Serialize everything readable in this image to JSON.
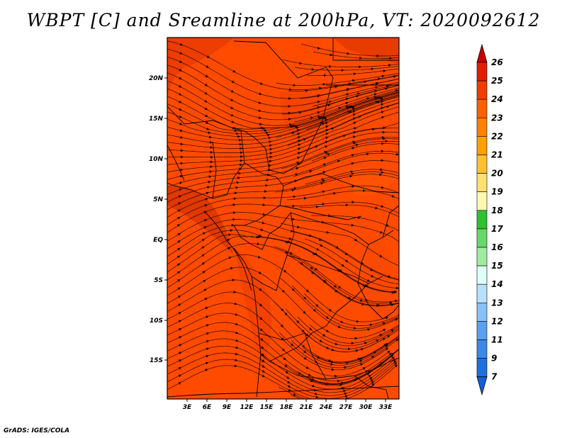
{
  "title": "WBPT [C] and Sreamline at 200hPa, VT: 2020092612",
  "footer": "GrADS: IGES/COLA",
  "map": {
    "fill_color": "#ff4b00",
    "lat_range": [
      -20,
      24
    ],
    "lon_range": [
      0,
      35
    ],
    "lat_labels": [
      "20N",
      "15N",
      "10N",
      "5N",
      "EQ",
      "5S",
      "10S",
      "15S"
    ],
    "lon_labels": [
      "3E",
      "6E",
      "9E",
      "12E",
      "15E",
      "18E",
      "21E",
      "24E",
      "27E",
      "30E",
      "33E"
    ]
  },
  "colorbar": {
    "levels": [
      "26",
      "25",
      "24",
      "23",
      "22",
      "21",
      "20",
      "19",
      "18",
      "17",
      "16",
      "15",
      "14",
      "13",
      "12",
      "11",
      "9",
      "7"
    ],
    "colors": [
      "#c80000",
      "#e01e00",
      "#f03c00",
      "#ff6000",
      "#ff8200",
      "#ffa000",
      "#ffc030",
      "#ffe070",
      "#fff8b0",
      "#30c030",
      "#68d868",
      "#a0eca0",
      "#e0fff8",
      "#b8e0ff",
      "#88c0f8",
      "#5aa0f0",
      "#3c88e8",
      "#2070e0",
      "#1460dc"
    ]
  }
}
